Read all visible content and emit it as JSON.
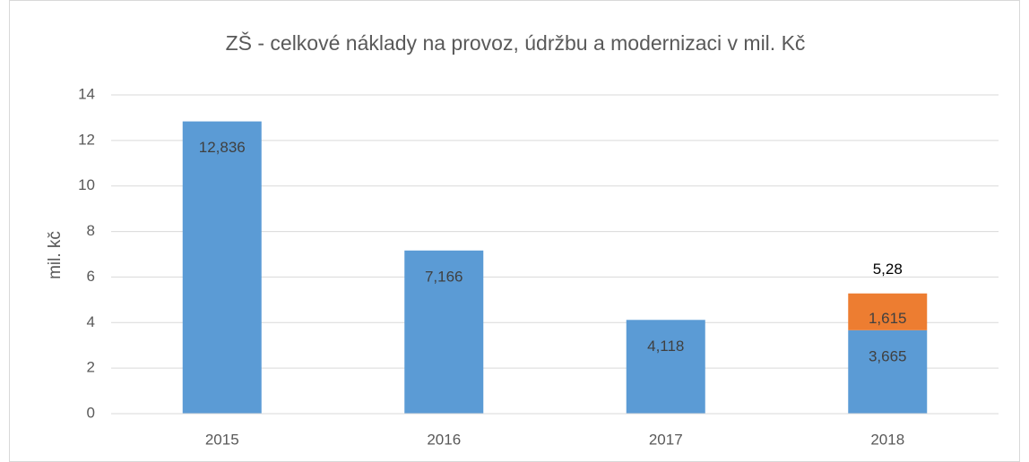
{
  "chart_data": {
    "type": "stacked_bar",
    "title": "ZŠ - celkové náklady na provoz, údržbu a modernizaci v mil. Kč",
    "y_label": "mil. kč",
    "categories": [
      "2015",
      "2016",
      "2017",
      "2018"
    ],
    "series": [
      {
        "color": "#5b9bd5",
        "values": [
          12.836,
          7.166,
          4.118,
          3.665
        ],
        "value_labels": [
          "12,836",
          "7,166",
          "4,118",
          "3,665"
        ]
      },
      {
        "color": "#ed7d31",
        "values": [
          null,
          null,
          null,
          1.615
        ],
        "value_labels": [
          null,
          null,
          null,
          "1,615"
        ]
      }
    ],
    "totals": [
      null,
      null,
      null,
      5.28
    ],
    "total_labels": [
      null,
      null,
      null,
      "5,28"
    ],
    "ylim": [
      0,
      14
    ],
    "yticks": [
      0,
      2,
      4,
      6,
      8,
      10,
      12,
      14
    ],
    "grid": true
  }
}
